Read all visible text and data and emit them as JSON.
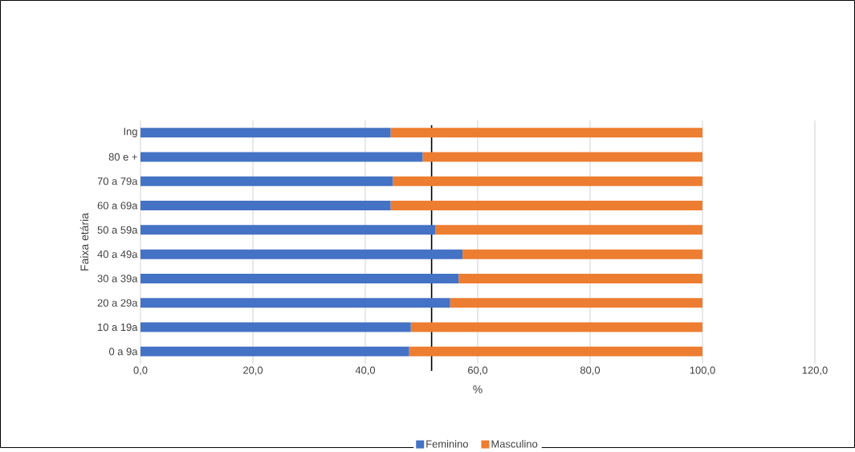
{
  "chart_data": {
    "type": "bar",
    "orientation": "horizontal",
    "stacked": true,
    "categories": [
      "Ing",
      "80 e +",
      "70 a 79a",
      "60 a 69a",
      "50 a 59a",
      "40 a 49a",
      "30 a 39a",
      "20 a 29a",
      "10 a 19a",
      "0 a 9a"
    ],
    "series": [
      {
        "name": "Feminino",
        "color": "#4472c4",
        "values": [
          44.5,
          50.2,
          44.9,
          44.5,
          52.5,
          57.3,
          56.6,
          55.1,
          48.1,
          47.8
        ]
      },
      {
        "name": "Masculino",
        "color": "#ed7d31",
        "values": [
          55.5,
          49.8,
          55.1,
          55.5,
          47.5,
          42.7,
          43.4,
          44.9,
          51.9,
          52.2
        ]
      }
    ],
    "xlabel": "%",
    "ylabel": "Faixa etária",
    "xlim": [
      0,
      120
    ],
    "xticks": [
      {
        "value": 0,
        "label": "0,0"
      },
      {
        "value": 20,
        "label": "20,0"
      },
      {
        "value": 40,
        "label": "40,0"
      },
      {
        "value": 60,
        "label": "60,0"
      },
      {
        "value": 80,
        "label": "80,0"
      },
      {
        "value": 100,
        "label": "100,0"
      },
      {
        "value": 120,
        "label": "120,0"
      }
    ],
    "ref_lines": [
      {
        "axis": "x",
        "value": 51.8,
        "color": "#000000"
      }
    ],
    "grid": "x",
    "legend": "bottom"
  }
}
